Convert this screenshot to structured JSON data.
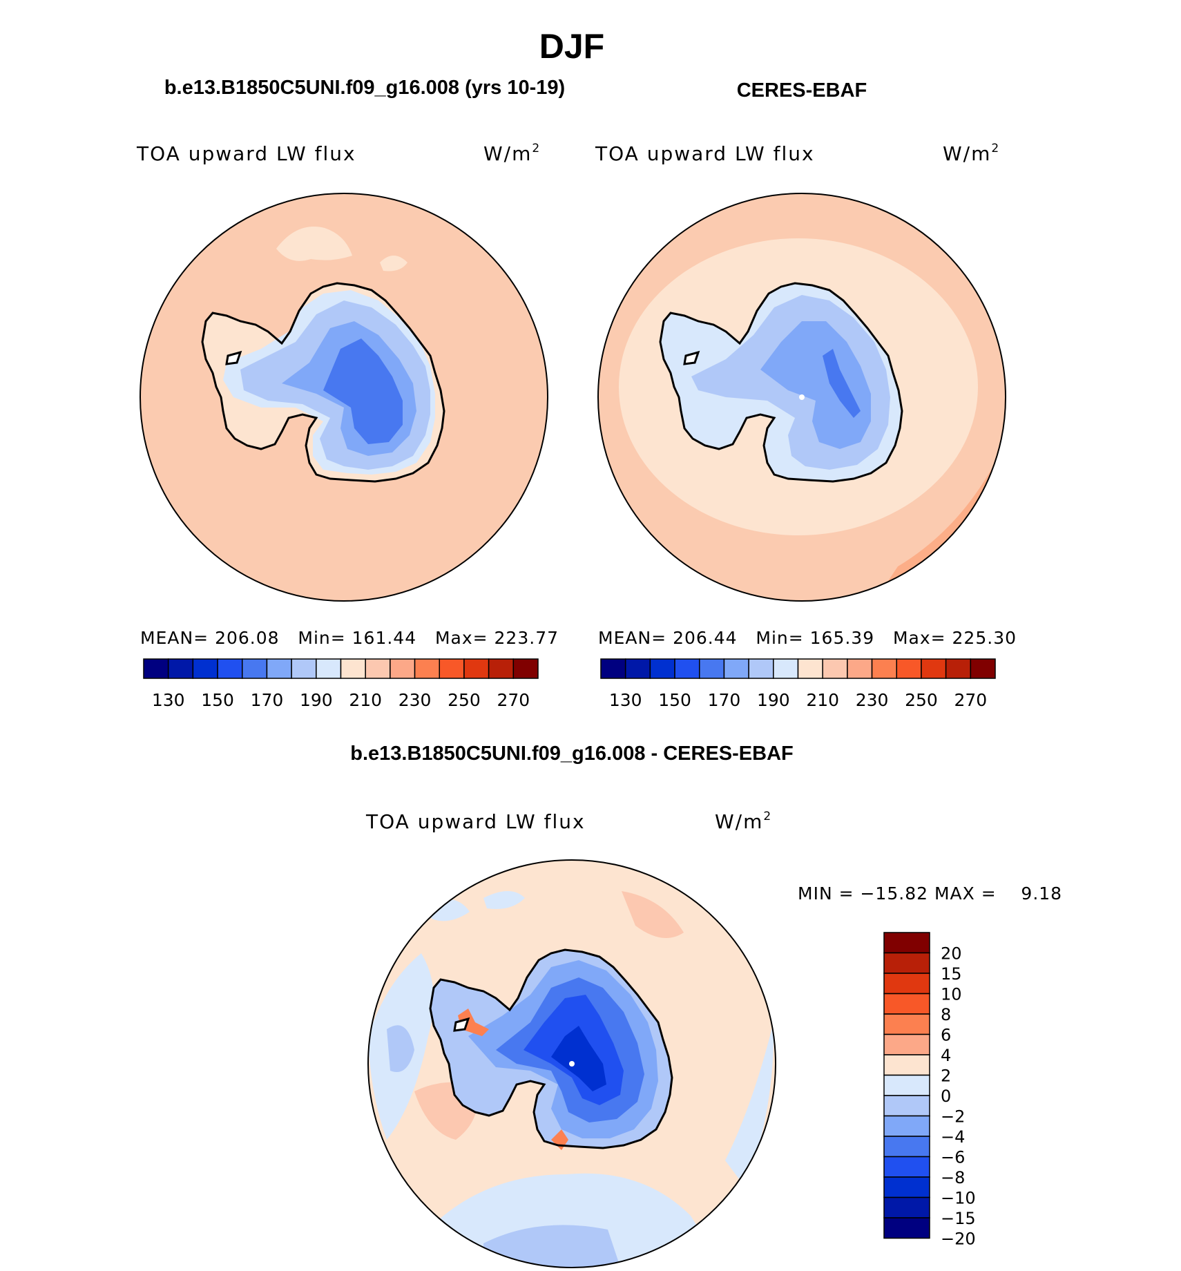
{
  "title": "DJF",
  "panels": {
    "model": {
      "header": "b.e13.B1850C5UNI.f09_g16.008 (yrs 10-19)",
      "variable": "TOA upward LW flux",
      "units": "W/m",
      "units_sup": "2",
      "stats": "MEAN= 206.08   Min= 161.44   Max= 223.77"
    },
    "obs": {
      "header": "CERES-EBAF",
      "variable": "TOA upward LW flux",
      "units": "W/m",
      "units_sup": "2",
      "stats": "MEAN= 206.44   Min= 165.39   Max= 225.30"
    },
    "diff": {
      "header": "b.e13.B1850C5UNI.f09_g16.008 - CERES-EBAF",
      "variable": "TOA upward LW flux",
      "units": "W/m",
      "units_sup": "2",
      "stats": "MIN = −15.82 MAX =    9.18"
    }
  },
  "colorbar_abs": {
    "colors": [
      "#000080",
      "#0018a8",
      "#0030d0",
      "#2050f0",
      "#4878f0",
      "#80a8f8",
      "#b0c8f8",
      "#d8e8fc",
      "#fde4d0",
      "#fcc8b0",
      "#fca888",
      "#fc8050",
      "#f85828",
      "#e03810",
      "#b82008",
      "#800000"
    ],
    "tick_labels": [
      "130",
      "150",
      "170",
      "190",
      "210",
      "230",
      "250",
      "270"
    ]
  },
  "colorbar_diff": {
    "colors": [
      "#800000",
      "#b82008",
      "#e03810",
      "#f85828",
      "#fc8050",
      "#fca888",
      "#fde4d0",
      "#d8e8fc",
      "#b0c8f8",
      "#80a8f8",
      "#4878f0",
      "#2050f0",
      "#0030d0",
      "#0018a8",
      "#000080"
    ],
    "tick_labels": [
      "20",
      "15",
      "10",
      "8",
      "6",
      "4",
      "2",
      "0",
      "−2",
      "−4",
      "−6",
      "−8",
      "−10",
      "−15",
      "−20"
    ]
  }
}
